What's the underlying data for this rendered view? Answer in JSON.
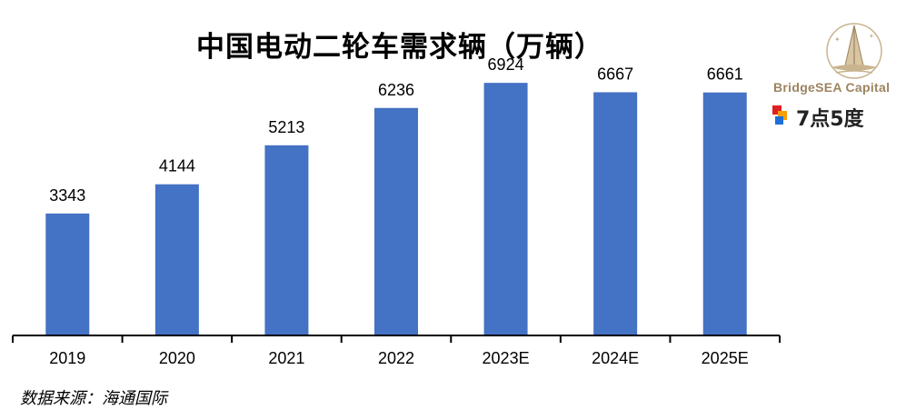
{
  "title": "中国电动二轮车需求辆（万辆）",
  "source": "数据来源：海通国际",
  "watermarks": {
    "bridgesea": "BridgeSEA Capital",
    "qdwd": "7点5度"
  },
  "colors": {
    "bar": "#4472c4",
    "axis": "#000000",
    "brand_gold": "#9c8460"
  },
  "chart_data": {
    "type": "bar",
    "title": "中国电动二轮车需求辆（万辆）",
    "categories": [
      "2019",
      "2020",
      "2021",
      "2022",
      "2023E",
      "2024E",
      "2025E"
    ],
    "values": [
      3343,
      4144,
      5213,
      6236,
      6924,
      6667,
      6661
    ],
    "data_labels": [
      "3343",
      "4144",
      "5213",
      "6236",
      "6924",
      "6667",
      "6661"
    ],
    "xlabel": "",
    "ylabel": "",
    "ylim": [
      0,
      7800
    ],
    "grid": false,
    "legend": false
  }
}
